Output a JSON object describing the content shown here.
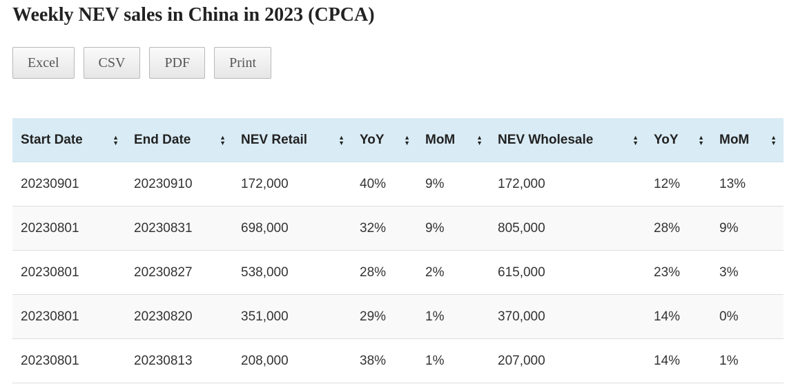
{
  "title": "Weekly NEV sales in China in 2023 (CPCA)",
  "buttons": [
    "Excel",
    "CSV",
    "PDF",
    "Print"
  ],
  "table": {
    "columns": [
      "Start Date",
      "End Date",
      "NEV Retail",
      "YoY",
      "MoM",
      "NEV Wholesale",
      "YoY",
      "MoM"
    ],
    "rows": [
      [
        "20230901",
        "20230910",
        "172,000",
        "40%",
        "9%",
        "172,000",
        "12%",
        "13%"
      ],
      [
        "20230801",
        "20230831",
        "698,000",
        "32%",
        "9%",
        "805,000",
        "28%",
        "9%"
      ],
      [
        "20230801",
        "20230827",
        "538,000",
        "28%",
        "2%",
        "615,000",
        "23%",
        "3%"
      ],
      [
        "20230801",
        "20230820",
        "351,000",
        "29%",
        "1%",
        "370,000",
        "14%",
        "0%"
      ],
      [
        "20230801",
        "20230813",
        "208,000",
        "38%",
        "1%",
        "207,000",
        "14%",
        "1%"
      ]
    ]
  },
  "colors": {
    "header_bg": "#d9ebf5",
    "stripe": "#f9f9f9"
  }
}
